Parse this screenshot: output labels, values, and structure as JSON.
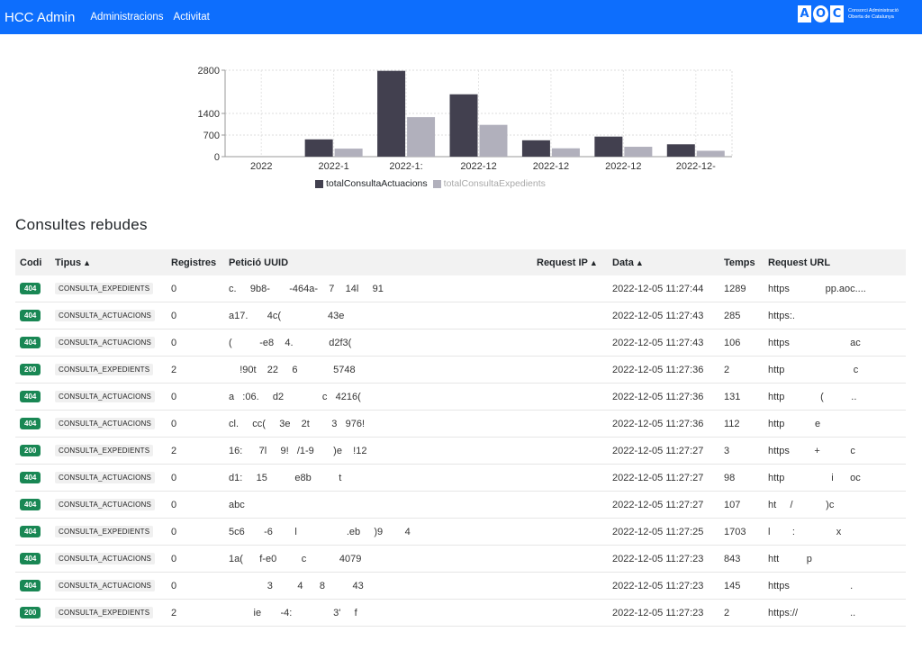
{
  "navbar": {
    "brand": "HCC Admin",
    "links": [
      "Administracions",
      "Activitat"
    ],
    "logo_letters": [
      "A",
      "O",
      "C"
    ],
    "logo_text": "Consorci Administració Oberta de Catalunya",
    "bg_color": "#0d6efd"
  },
  "chart_data": {
    "type": "bar",
    "categories": [
      "2022",
      "2022-1",
      "2022-1:",
      "2022-12",
      "2022-12",
      "2022-12",
      "2022-12-"
    ],
    "series": [
      {
        "name": "totalConsultaActuacions",
        "color": "#42404f",
        "values": [
          0,
          560,
          2780,
          2020,
          530,
          650,
          400
        ]
      },
      {
        "name": "totalConsultaExpedients",
        "color": "#b1b0bc",
        "values": [
          0,
          260,
          1280,
          1030,
          270,
          320,
          190
        ]
      }
    ],
    "yticks": [
      "0",
      "700",
      "1400",
      "2800"
    ],
    "ylim": [
      0,
      2800
    ],
    "grid": true,
    "legend": "bottom"
  },
  "section_title": "Consultes rebudes",
  "table": {
    "headers": {
      "codi": "Codi",
      "tipus": "Tipus",
      "registres": "Registres",
      "uuid": "Petició UUID",
      "ip": "Request IP",
      "data": "Data",
      "temps": "Temps",
      "url": "Request URL"
    },
    "sort_icon": "sort-icon",
    "rows": [
      {
        "codi": "404",
        "tipus": "CONSULTA_EXPEDIENTS",
        "registres": "0",
        "uuid": "c.     9b8-       -464a-    7    14l     91",
        "ip": "",
        "data": "2022-12-05 11:27:44",
        "temps": "1289",
        "url": "https             pp.aoc...."
      },
      {
        "codi": "404",
        "tipus": "CONSULTA_ACTUACIONS",
        "registres": "0",
        "uuid": "a17.       4c(                 43e",
        "ip": "",
        "data": "2022-12-05 11:27:43",
        "temps": "285",
        "url": "https:."
      },
      {
        "codi": "404",
        "tipus": "CONSULTA_ACTUACIONS",
        "registres": "0",
        "uuid": "(          -e8    4.             d2f3(",
        "ip": "",
        "data": "2022-12-05 11:27:43",
        "temps": "106",
        "url": "https                      ac"
      },
      {
        "codi": "200",
        "tipus": "CONSULTA_EXPEDIENTS",
        "registres": "2",
        "uuid": "    !90t    22     6             5748",
        "ip": "",
        "data": "2022-12-05 11:27:36",
        "temps": "2",
        "url": "http                         c"
      },
      {
        "codi": "404",
        "tipus": "CONSULTA_ACTUACIONS",
        "registres": "0",
        "uuid": "a   :06.     d2              c   4216(",
        "ip": "",
        "data": "2022-12-05 11:27:36",
        "temps": "131",
        "url": "http             (          .."
      },
      {
        "codi": "404",
        "tipus": "CONSULTA_ACTUACIONS",
        "registres": "0",
        "uuid": "cl.     cc(     3e    2t        3   976!",
        "ip": "",
        "data": "2022-12-05 11:27:36",
        "temps": "112",
        "url": "http           e"
      },
      {
        "codi": "200",
        "tipus": "CONSULTA_EXPEDIENTS",
        "registres": "2",
        "uuid": "16:      7l     9!   /1-9       )e    !12",
        "ip": "",
        "data": "2022-12-05 11:27:27",
        "temps": "3",
        "url": "https         +           c"
      },
      {
        "codi": "404",
        "tipus": "CONSULTA_ACTUACIONS",
        "registres": "0",
        "uuid": "d1:     15          e8b          t",
        "ip": "",
        "data": "2022-12-05 11:27:27",
        "temps": "98",
        "url": "http                 i      oc"
      },
      {
        "codi": "404",
        "tipus": "CONSULTA_ACTUACIONS",
        "registres": "0",
        "uuid": "abc",
        "ip": "",
        "data": "2022-12-05 11:27:27",
        "temps": "107",
        "url": "ht     /            )c"
      },
      {
        "codi": "404",
        "tipus": "CONSULTA_EXPEDIENTS",
        "registres": "0",
        "uuid": "5c6       -6        l                  .eb     )9        4",
        "ip": "",
        "data": "2022-12-05 11:27:25",
        "temps": "1703",
        "url": "l        :               x"
      },
      {
        "codi": "404",
        "tipus": "CONSULTA_ACTUACIONS",
        "registres": "0",
        "uuid": "1a(      f-e0         c            4079",
        "ip": "",
        "data": "2022-12-05 11:27:23",
        "temps": "843",
        "url": "htt          p"
      },
      {
        "codi": "404",
        "tipus": "CONSULTA_ACTUACIONS",
        "registres": "0",
        "uuid": "              3         4      8          43",
        "ip": "",
        "data": "2022-12-05 11:27:23",
        "temps": "145",
        "url": "https                      ."
      },
      {
        "codi": "200",
        "tipus": "CONSULTA_EXPEDIENTS",
        "registres": "2",
        "uuid": "         ie       -4:               3'     f",
        "ip": "",
        "data": "2022-12-05 11:27:23",
        "temps": "2",
        "url": "https://                   .."
      }
    ]
  }
}
